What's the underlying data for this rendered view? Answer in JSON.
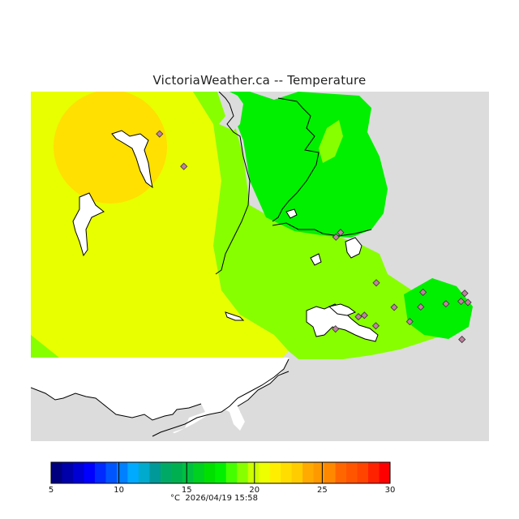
{
  "title": "VictoriaWeather.ca -- Temperature",
  "legend": {
    "unit": "°C",
    "timestamp": "2026/04/19 15:58",
    "min": 5,
    "max": 30,
    "major_ticks": [
      5,
      10,
      15,
      20,
      25,
      30
    ],
    "swatches": [
      "#00007f",
      "#0000aa",
      "#0000d4",
      "#0000ff",
      "#002aff",
      "#0055ff",
      "#007fff",
      "#00aaff",
      "#00aacc",
      "#009999",
      "#00aa66",
      "#00b050",
      "#00c040",
      "#00d020",
      "#00e000",
      "#00f000",
      "#44ff00",
      "#88ff00",
      "#ccff00",
      "#eeff00",
      "#ffee00",
      "#ffdd00",
      "#ffcc00",
      "#ffaa00",
      "#ff9900",
      "#ff8800",
      "#ff6600",
      "#ff5500",
      "#ff4400",
      "#ff2200",
      "#ff0000"
    ]
  },
  "colors": {
    "land_gray": "#dcdcdc",
    "water_white": "#ffffff",
    "zone_22_yellow": "#e8ff00",
    "zone_23_gold": "#ffe000",
    "zone_19_chartreuse": "#88ff00",
    "zone_18_green": "#00f000",
    "zone_17_green": "#00e000",
    "station_marker": "#c080a0"
  },
  "stations": [
    {
      "lon_frac": 0.281,
      "lat_frac": 0.121
    },
    {
      "lon_frac": 0.334,
      "lat_frac": 0.214
    },
    {
      "lon_frac": 0.666,
      "lat_frac": 0.416
    },
    {
      "lon_frac": 0.754,
      "lat_frac": 0.547
    },
    {
      "lon_frac": 0.728,
      "lat_frac": 0.64
    },
    {
      "lon_frac": 0.856,
      "lat_frac": 0.574
    },
    {
      "lon_frac": 0.793,
      "lat_frac": 0.617
    },
    {
      "lon_frac": 0.827,
      "lat_frac": 0.658
    },
    {
      "lon_frac": 0.906,
      "lat_frac": 0.607
    },
    {
      "lon_frac": 0.947,
      "lat_frac": 0.577
    },
    {
      "lon_frac": 0.939,
      "lat_frac": 0.6
    },
    {
      "lon_frac": 0.954,
      "lat_frac": 0.603
    },
    {
      "lon_frac": 0.715,
      "lat_frac": 0.644
    },
    {
      "lon_frac": 0.665,
      "lat_frac": 0.679
    },
    {
      "lon_frac": 0.753,
      "lat_frac": 0.67
    },
    {
      "lon_frac": 0.851,
      "lat_frac": 0.616
    },
    {
      "lon_frac": 0.941,
      "lat_frac": 0.709
    },
    {
      "lon_frac": 0.676,
      "lat_frac": 0.403
    }
  ]
}
